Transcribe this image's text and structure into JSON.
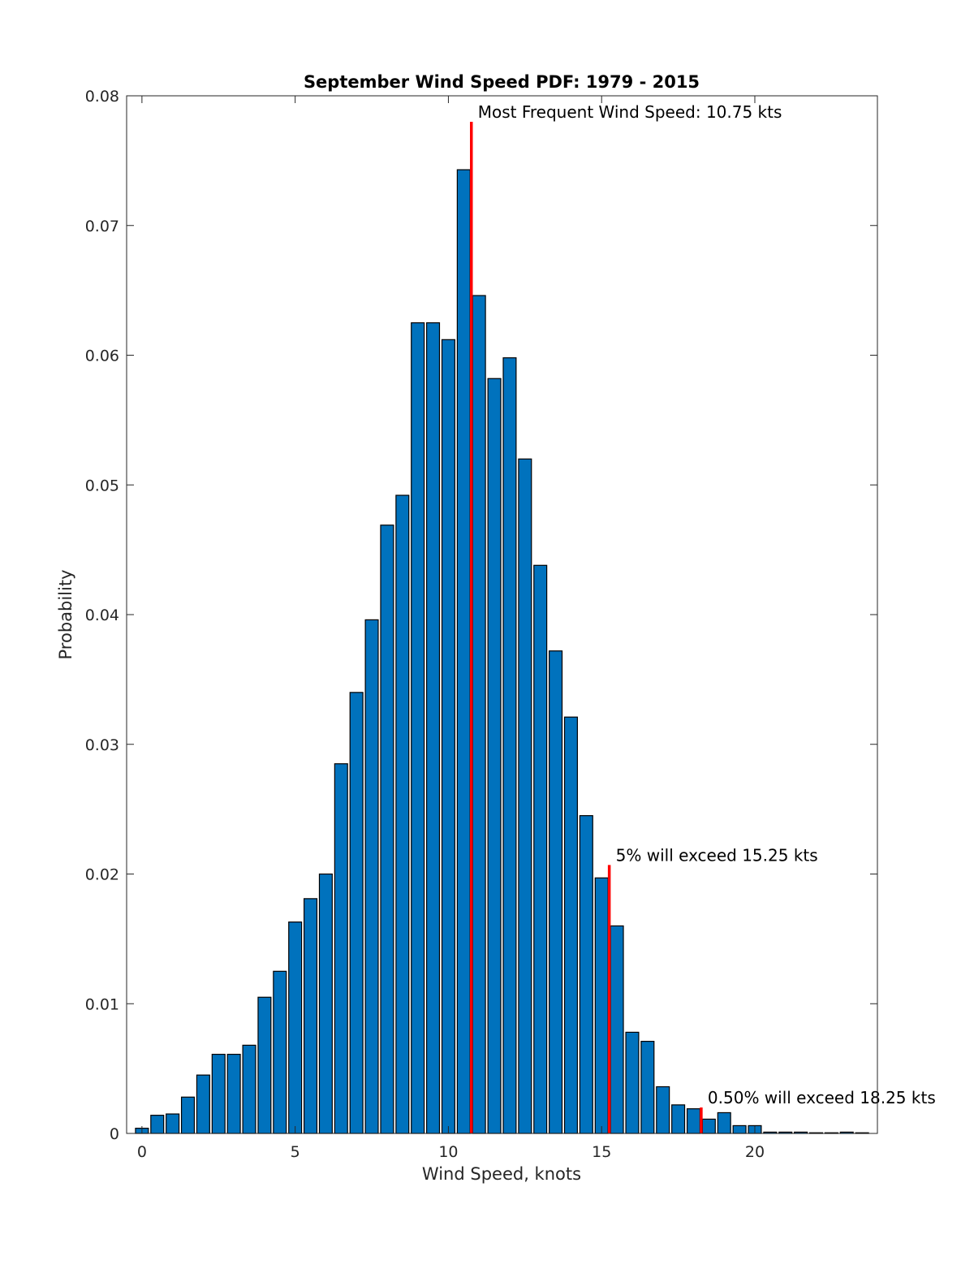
{
  "chart_data": {
    "type": "bar",
    "title": "September Wind Speed PDF: 1979 - 2015",
    "xlabel": "Wind Speed, knots",
    "ylabel": "Probability",
    "xlim": [
      -0.5,
      24
    ],
    "ylim": [
      0,
      0.08
    ],
    "xticks": [
      0,
      5,
      10,
      15,
      20
    ],
    "xtick_labels": [
      "0",
      "5",
      "10",
      "15",
      "20"
    ],
    "yticks": [
      0,
      0.01,
      0.02,
      0.03,
      0.04,
      0.05,
      0.06,
      0.07,
      0.08
    ],
    "ytick_labels": [
      "0",
      "0.01",
      "0.02",
      "0.03",
      "0.04",
      "0.05",
      "0.06",
      "0.07",
      "0.08"
    ],
    "grid": false,
    "bar_color": "#0072BD",
    "x": [
      0,
      0.5,
      1,
      1.5,
      2,
      2.5,
      3,
      3.5,
      4,
      4.5,
      5,
      5.5,
      6,
      6.5,
      7,
      7.5,
      8,
      8.5,
      9,
      9.5,
      10,
      10.5,
      11,
      11.5,
      12,
      12.5,
      13,
      13.5,
      14,
      14.5,
      15,
      15.5,
      16,
      16.5,
      17,
      17.5,
      18,
      18.5,
      19,
      19.5,
      20,
      20.5,
      21,
      21.5,
      22,
      22.5,
      23,
      23.5
    ],
    "values": [
      0.0004,
      0.0014,
      0.0015,
      0.0028,
      0.0045,
      0.0061,
      0.0061,
      0.0068,
      0.0105,
      0.0125,
      0.0163,
      0.0181,
      0.02,
      0.0285,
      0.034,
      0.0396,
      0.0469,
      0.0492,
      0.0625,
      0.0625,
      0.0612,
      0.0743,
      0.0646,
      0.0582,
      0.0598,
      0.052,
      0.0438,
      0.0372,
      0.0321,
      0.0245,
      0.0197,
      0.016,
      0.0078,
      0.0071,
      0.0036,
      0.0022,
      0.0019,
      0.0011,
      0.0016,
      0.0006,
      0.0006,
      0.0001,
      0.0001,
      0.0001,
      5e-05,
      5e-05,
      0.0001,
      5e-05
    ],
    "annotations": [
      {
        "x": 10.75,
        "y_top": 0.078,
        "color": "#FF0000",
        "text": "Most Frequent Wind Speed: 10.75 kts"
      },
      {
        "x": 15.25,
        "y_top": 0.0207,
        "color": "#FF0000",
        "text": "5% will exceed 15.25 kts"
      },
      {
        "x": 18.25,
        "y_top": 0.002,
        "color": "#FF0000",
        "text": "0.50% will exceed 18.25 kts"
      }
    ]
  }
}
